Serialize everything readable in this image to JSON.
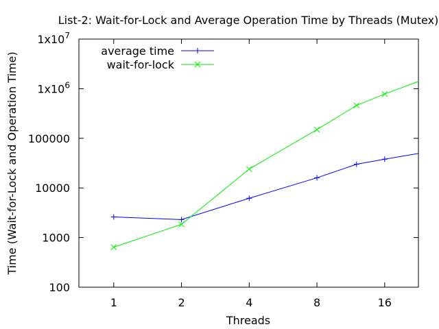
{
  "chart_data": {
    "type": "line",
    "title": "List-2: Wait-for-Lock and Average Operation Time by Threads (Mutex)",
    "xlabel": "Threads",
    "ylabel": "Time (Wait-for-Lock and Operation Time)",
    "x_scale": "log2",
    "y_scale": "log10",
    "xlim": [
      0.7,
      22.6
    ],
    "ylim": [
      100,
      10000000
    ],
    "x_ticks": [
      1,
      2,
      4,
      8,
      16
    ],
    "x_tick_labels": [
      "1",
      "2",
      "4",
      "8",
      "16"
    ],
    "y_ticks": [
      100,
      1000,
      10000,
      100000,
      1000000,
      10000000
    ],
    "y_tick_labels": [
      {
        "base": "100"
      },
      {
        "base": "1000"
      },
      {
        "base": "10000"
      },
      {
        "base": "100000"
      },
      {
        "base": "1x10",
        "exp": "6"
      },
      {
        "base": "1x10",
        "exp": "7"
      }
    ],
    "legend_position": "top-left",
    "grid": false,
    "series": [
      {
        "name": "average time",
        "color": "#0000ff",
        "marker": "plus",
        "x": [
          1,
          2,
          4,
          8,
          12,
          16,
          24
        ],
        "values": [
          2600,
          2300,
          6200,
          16000,
          30000,
          38000,
          52000
        ]
      },
      {
        "name": "wait-for-lock",
        "color": "#00ee00",
        "marker": "cross",
        "x": [
          1,
          2,
          4,
          8,
          12,
          16,
          24
        ],
        "values": [
          640,
          1850,
          24000,
          150000,
          460000,
          780000,
          1550000
        ]
      }
    ]
  }
}
